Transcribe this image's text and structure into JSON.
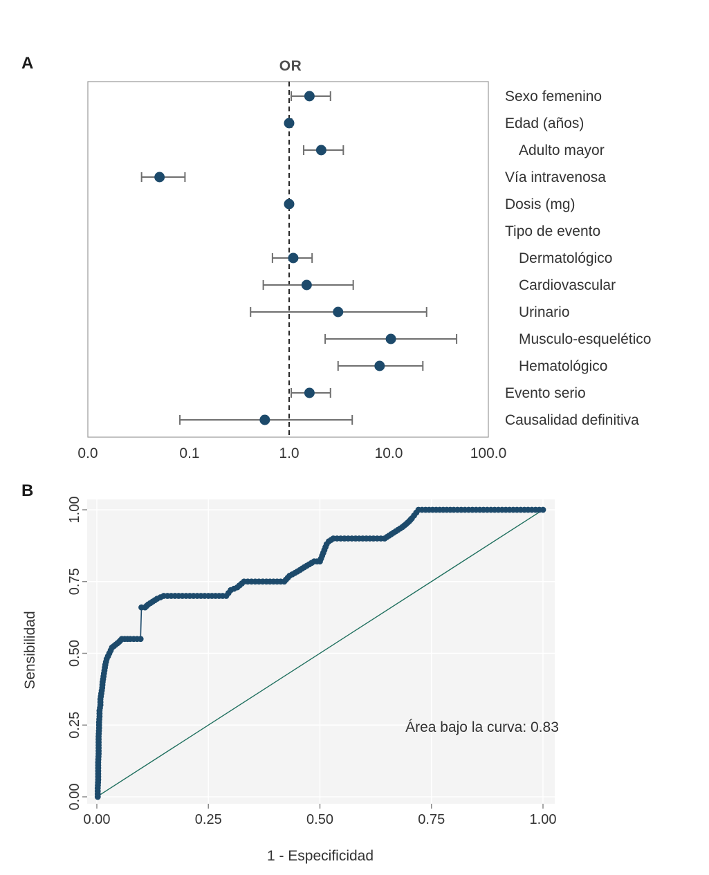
{
  "page": {
    "background": "#ffffff"
  },
  "colors": {
    "dot": "#1d4a6b",
    "error_bar": "#6f6f6f",
    "diagonal": "#20705f",
    "panel_bg": "#f4f4f4",
    "gridline": "#ffffff",
    "text": "#333333",
    "border": "#9a9a9a",
    "reference": "#111111"
  },
  "chart_data": [
    {
      "type": "scatter",
      "subtype": "forest-plot",
      "panel": "A",
      "title": "OR",
      "x_scale": "log",
      "x_tick_labels": [
        "0.0",
        "0.1",
        "1.0",
        "10.0",
        "100.0"
      ],
      "reference_line": 1.0,
      "rows": [
        {
          "label": "Sexo femenino",
          "indent": 0,
          "or": 1.6,
          "ci_low": 1.05,
          "ci_high": 2.6
        },
        {
          "label": "Edad (años)",
          "indent": 0,
          "or": 1.0,
          "ci_low": 0.97,
          "ci_high": 1.06
        },
        {
          "label": "Adulto mayor",
          "indent": 1,
          "or": 2.1,
          "ci_low": 1.4,
          "ci_high": 3.5
        },
        {
          "label": "Vía intravenosa",
          "indent": 0,
          "or": 0.05,
          "ci_low": 0.033,
          "ci_high": 0.09
        },
        {
          "label": "Dosis (mg)",
          "indent": 0,
          "or": 1.0,
          "ci_low": 0.99,
          "ci_high": 1.02
        },
        {
          "label": "Tipo de evento",
          "indent": 0,
          "or": null,
          "ci_low": null,
          "ci_high": null
        },
        {
          "label": "Dermatológico",
          "indent": 1,
          "or": 1.1,
          "ci_low": 0.68,
          "ci_high": 1.7
        },
        {
          "label": "Cardiovascular",
          "indent": 1,
          "or": 1.5,
          "ci_low": 0.55,
          "ci_high": 4.4
        },
        {
          "label": "Urinario",
          "indent": 1,
          "or": 3.1,
          "ci_low": 0.41,
          "ci_high": 24.0
        },
        {
          "label": "Musculo-esquelético",
          "indent": 1,
          "or": 10.5,
          "ci_low": 2.3,
          "ci_high": 48.0
        },
        {
          "label": "Hematológico",
          "indent": 1,
          "or": 8.1,
          "ci_low": 3.1,
          "ci_high": 22.0
        },
        {
          "label": "Evento serio",
          "indent": 0,
          "or": 1.6,
          "ci_low": 1.05,
          "ci_high": 2.6
        },
        {
          "label": "Causalidad definitiva",
          "indent": 0,
          "or": 0.57,
          "ci_low": 0.08,
          "ci_high": 4.3
        }
      ]
    },
    {
      "type": "line",
      "subtype": "roc-curve",
      "panel": "B",
      "xlabel": "1 - Especificidad",
      "ylabel": "Sensibilidad",
      "x_tick_labels": [
        "0.00",
        "0.25",
        "0.50",
        "0.75",
        "1.00"
      ],
      "y_tick_labels": [
        "0.00",
        "0.25",
        "0.50",
        "0.75",
        "1.00"
      ],
      "xlim": [
        0,
        1
      ],
      "ylim": [
        0,
        1
      ],
      "annotation": "Área bajo la curva: 0.83",
      "auc": 0.83,
      "diagonal_reference": true,
      "points": [
        [
          0.002,
          0.0
        ],
        [
          0.002,
          0.03
        ],
        [
          0.003,
          0.06
        ],
        [
          0.003,
          0.09
        ],
        [
          0.003,
          0.12
        ],
        [
          0.004,
          0.15
        ],
        [
          0.004,
          0.18
        ],
        [
          0.004,
          0.21
        ],
        [
          0.005,
          0.24
        ],
        [
          0.005,
          0.26
        ],
        [
          0.006,
          0.28
        ],
        [
          0.006,
          0.3
        ],
        [
          0.008,
          0.32
        ],
        [
          0.008,
          0.34
        ],
        [
          0.01,
          0.36
        ],
        [
          0.012,
          0.38
        ],
        [
          0.013,
          0.4
        ],
        [
          0.015,
          0.42
        ],
        [
          0.017,
          0.44
        ],
        [
          0.019,
          0.46
        ],
        [
          0.022,
          0.48
        ],
        [
          0.028,
          0.5
        ],
        [
          0.034,
          0.52
        ],
        [
          0.042,
          0.53
        ],
        [
          0.05,
          0.54
        ],
        [
          0.056,
          0.55
        ],
        [
          0.075,
          0.55
        ],
        [
          0.098,
          0.55
        ],
        [
          0.1,
          0.66
        ],
        [
          0.108,
          0.66
        ],
        [
          0.115,
          0.67
        ],
        [
          0.125,
          0.68
        ],
        [
          0.135,
          0.69
        ],
        [
          0.15,
          0.7
        ],
        [
          0.2,
          0.7
        ],
        [
          0.25,
          0.7
        ],
        [
          0.29,
          0.7
        ],
        [
          0.3,
          0.72
        ],
        [
          0.315,
          0.73
        ],
        [
          0.33,
          0.75
        ],
        [
          0.38,
          0.75
        ],
        [
          0.42,
          0.75
        ],
        [
          0.432,
          0.77
        ],
        [
          0.444,
          0.78
        ],
        [
          0.455,
          0.79
        ],
        [
          0.465,
          0.8
        ],
        [
          0.476,
          0.81
        ],
        [
          0.487,
          0.82
        ],
        [
          0.5,
          0.82
        ],
        [
          0.505,
          0.84
        ],
        [
          0.51,
          0.86
        ],
        [
          0.515,
          0.88
        ],
        [
          0.52,
          0.89
        ],
        [
          0.53,
          0.9
        ],
        [
          0.58,
          0.9
        ],
        [
          0.62,
          0.9
        ],
        [
          0.645,
          0.9
        ],
        [
          0.655,
          0.91
        ],
        [
          0.665,
          0.92
        ],
        [
          0.675,
          0.93
        ],
        [
          0.685,
          0.94
        ],
        [
          0.693,
          0.95
        ],
        [
          0.7,
          0.96
        ],
        [
          0.706,
          0.97
        ],
        [
          0.711,
          0.98
        ],
        [
          0.716,
          0.99
        ],
        [
          0.721,
          1.0
        ],
        [
          0.8,
          1.0
        ],
        [
          0.9,
          1.0
        ],
        [
          1.0,
          1.0
        ]
      ]
    }
  ]
}
